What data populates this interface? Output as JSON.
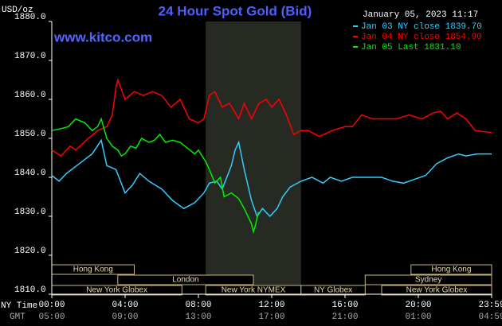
{
  "chart_data": {
    "type": "line",
    "title": "24 Hour Spot Gold (Bid)",
    "timestamp": "January 05, 2023 11:17",
    "watermark": "www.kitco.com",
    "y_label": "USD/oz",
    "x_label_ny": "NY Time",
    "x_label_gmt": "GMT",
    "xlim": [
      0,
      24
    ],
    "xticks": [
      {
        "value": 0,
        "label": "00:00"
      },
      {
        "value": 4,
        "label": "04:00"
      },
      {
        "value": 8,
        "label": "08:00"
      },
      {
        "value": 12,
        "label": "12:00"
      },
      {
        "value": 16,
        "label": "16:00"
      },
      {
        "value": 20,
        "label": "20:00"
      },
      {
        "value": 24,
        "label": "23:59"
      }
    ],
    "gmt_labels": [
      "05:00",
      "09:00",
      "13:00",
      "17:00",
      "21:00",
      "01:00",
      "04:59"
    ],
    "ylim": [
      1810,
      1880
    ],
    "yticks": [
      {
        "value": 1810,
        "label": "1810.0"
      },
      {
        "value": 1820,
        "label": "1820.0"
      },
      {
        "value": 1830,
        "label": "1830.0"
      },
      {
        "value": 1840,
        "label": "1840.0"
      },
      {
        "value": 1850,
        "label": "1850.0"
      },
      {
        "value": 1860,
        "label": "1860.0"
      },
      {
        "value": 1870,
        "label": "1870.0"
      },
      {
        "value": 1880,
        "label": "1880.0"
      }
    ],
    "sessions": [
      [
        {
          "label": "Hong Kong",
          "start": 0,
          "end": 4.5
        },
        {
          "label": "Hong Kong",
          "start": 19.6,
          "end": 24
        }
      ],
      [
        {
          "label": "London",
          "start": 3.6,
          "end": 11
        },
        {
          "label": "Sydney",
          "start": 17.1,
          "end": 24
        }
      ],
      [
        {
          "label": "New York Globex",
          "start": 0,
          "end": 7.1
        },
        {
          "label": "New York NYMEX",
          "start": 8.4,
          "end": 13.6
        },
        {
          "label": "NY Globex",
          "start": 13.6,
          "end": 17.1
        },
        {
          "label": "New York Globex",
          "start": 18,
          "end": 24
        }
      ]
    ],
    "series": [
      {
        "name": "Jan 03 NY close 1839.70",
        "color": "#33ccff",
        "x": [
          0,
          0.4,
          0.8,
          1.5,
          2.2,
          2.7,
          3.0,
          3.5,
          4.0,
          4.4,
          4.8,
          5.3,
          6.0,
          6.6,
          7.2,
          7.8,
          8.3,
          8.6,
          9.0,
          9.3,
          9.8,
          10.0,
          10.2,
          10.5,
          10.9,
          11.2,
          11.5,
          11.9,
          12.3,
          12.6,
          13.0,
          13.6,
          14.2,
          14.8,
          15.2,
          15.8,
          16.4,
          17.0,
          18.0,
          18.6,
          19.2,
          19.8,
          20.4,
          21.0,
          21.6,
          22.2,
          22.6,
          23.2,
          24
        ],
        "values": [
          1840.5,
          1839,
          1841,
          1843.5,
          1846,
          1849.5,
          1843,
          1842,
          1836,
          1838,
          1841,
          1839,
          1837,
          1834,
          1832,
          1833.5,
          1836,
          1838.5,
          1839,
          1837,
          1843,
          1847,
          1849,
          1842,
          1834,
          1830,
          1832,
          1830,
          1832,
          1835,
          1837.5,
          1839,
          1840,
          1838.5,
          1840,
          1839,
          1840,
          1840,
          1840,
          1839,
          1838.5,
          1839.5,
          1840.5,
          1843.5,
          1845,
          1846,
          1845.5,
          1846,
          1846
        ]
      },
      {
        "name": "Jan 04 NY close 1854.90",
        "color": "#ff0000",
        "x": [
          0,
          0.5,
          1,
          1.3,
          2,
          2.5,
          3,
          3.3,
          3.5,
          3.6,
          4.0,
          4.5,
          5,
          5.5,
          6,
          6.5,
          7,
          7.5,
          8,
          8.3,
          8.6,
          8.9,
          9.3,
          9.7,
          10.2,
          10.5,
          10.9,
          11.3,
          11.7,
          12,
          12.4,
          12.8,
          13.2,
          13.6,
          14,
          14.6,
          15.3,
          16,
          16.4,
          16.9,
          17.5,
          18.2,
          18.8,
          19.5,
          20.2,
          20.8,
          21.2,
          21.6,
          22.1,
          22.6,
          23.1,
          24
        ],
        "values": [
          1847,
          1845.5,
          1848,
          1847,
          1850,
          1852,
          1853,
          1856,
          1863,
          1865,
          1860,
          1862,
          1861,
          1862,
          1861,
          1858,
          1860,
          1855,
          1854,
          1855,
          1861,
          1862,
          1858,
          1859,
          1855,
          1859,
          1855,
          1859,
          1860,
          1858,
          1860,
          1856,
          1851,
          1852,
          1852,
          1850.5,
          1852,
          1853,
          1853,
          1856,
          1855,
          1855,
          1855,
          1856,
          1855,
          1856.5,
          1857,
          1855,
          1856.5,
          1855,
          1852,
          1851.5
        ]
      },
      {
        "name": "Jan 05 Last 1831.10",
        "color": "#00ee00",
        "x": [
          0,
          0.5,
          0.9,
          1.3,
          1.8,
          2.2,
          2.5,
          2.7,
          3.0,
          3.3,
          3.6,
          3.8,
          4.0,
          4.3,
          4.6,
          4.9,
          5.3,
          5.6,
          5.9,
          6.2,
          6.6,
          7.0,
          7.4,
          7.8,
          8.0,
          8.4,
          8.6,
          8.9,
          9.2,
          9.4,
          9.8,
          10.2,
          10.5,
          10.9,
          11.0,
          11.1,
          11.28
        ],
        "values": [
          1852,
          1852.5,
          1853,
          1855,
          1854,
          1852,
          1853,
          1855,
          1850,
          1848,
          1847,
          1845.5,
          1846,
          1848,
          1847.5,
          1850,
          1849,
          1849.5,
          1851,
          1849,
          1849.5,
          1849,
          1847.5,
          1846,
          1847,
          1844,
          1842,
          1838.5,
          1840,
          1835,
          1836,
          1834.5,
          1832,
          1828,
          1826,
          1827.5,
          1831.1
        ]
      }
    ]
  }
}
